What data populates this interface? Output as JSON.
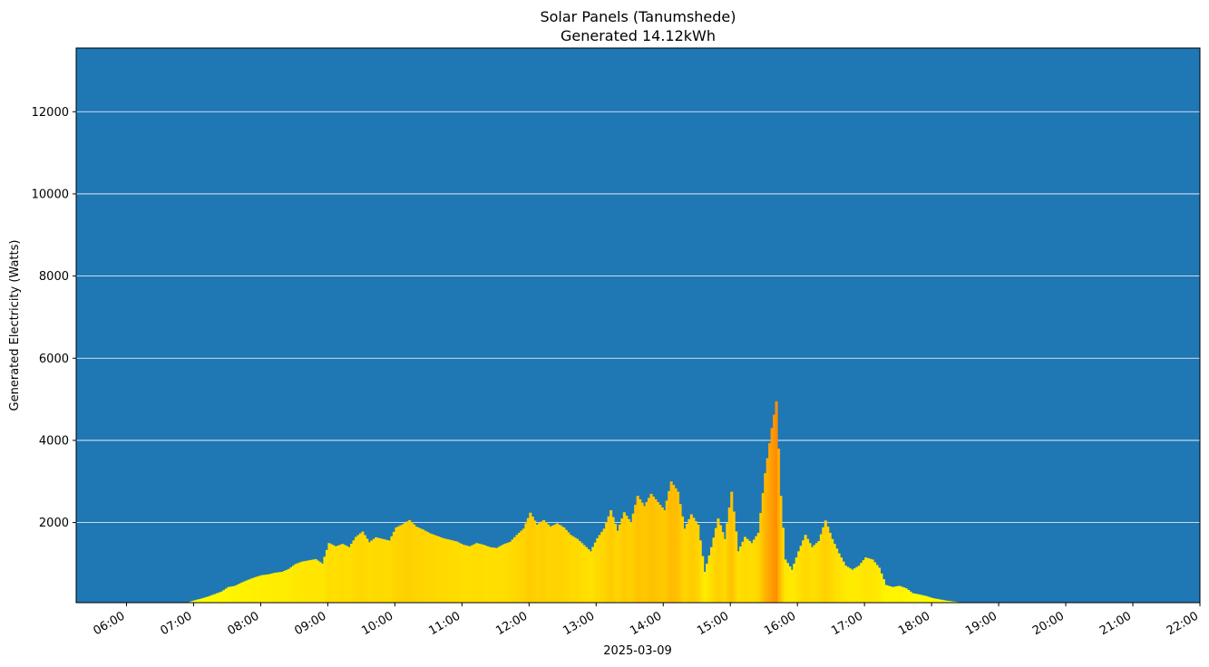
{
  "chart_data": {
    "type": "bar",
    "title": "Solar Panels (Tanumshede)",
    "subtitle": "Generated 14.12kWh",
    "xlabel": "2025-03-09",
    "ylabel": "Generated Electricity (Watts)",
    "x_range": [
      "05:15",
      "22:00"
    ],
    "ylim": [
      50,
      13550
    ],
    "grid": {
      "y": true,
      "color": "#ffffff"
    },
    "background": "#1f77b4",
    "color_scale": {
      "low": "#ffff00",
      "high": "#ff8c00",
      "min": 0,
      "max": 5000
    },
    "x_ticks": [
      "06:00",
      "07:00",
      "08:00",
      "09:00",
      "10:00",
      "11:00",
      "12:00",
      "13:00",
      "14:00",
      "15:00",
      "16:00",
      "17:00",
      "18:00",
      "19:00",
      "20:00",
      "21:00",
      "22:00"
    ],
    "y_ticks": [
      2000,
      4000,
      6000,
      8000,
      10000,
      12000
    ],
    "interval_minutes": 2,
    "series": [
      {
        "points": [
          [
            "06:54",
            60
          ],
          [
            "07:00",
            110
          ],
          [
            "07:06",
            150
          ],
          [
            "07:12",
            200
          ],
          [
            "07:18",
            260
          ],
          [
            "07:24",
            320
          ],
          [
            "07:30",
            430
          ],
          [
            "07:36",
            460
          ],
          [
            "07:42",
            540
          ],
          [
            "07:48",
            610
          ],
          [
            "07:54",
            670
          ],
          [
            "08:00",
            720
          ],
          [
            "08:06",
            740
          ],
          [
            "08:12",
            780
          ],
          [
            "08:18",
            800
          ],
          [
            "08:24",
            870
          ],
          [
            "08:30",
            990
          ],
          [
            "08:36",
            1050
          ],
          [
            "08:42",
            1080
          ],
          [
            "08:48",
            1110
          ],
          [
            "08:54",
            1000
          ],
          [
            "09:00",
            1500
          ],
          [
            "09:06",
            1420
          ],
          [
            "09:12",
            1480
          ],
          [
            "09:18",
            1400
          ],
          [
            "09:24",
            1650
          ],
          [
            "09:30",
            1780
          ],
          [
            "09:36",
            1520
          ],
          [
            "09:42",
            1640
          ],
          [
            "09:48",
            1600
          ],
          [
            "09:54",
            1560
          ],
          [
            "10:00",
            1880
          ],
          [
            "10:06",
            1960
          ],
          [
            "10:12",
            2060
          ],
          [
            "10:18",
            1900
          ],
          [
            "10:24",
            1830
          ],
          [
            "10:30",
            1740
          ],
          [
            "10:36",
            1680
          ],
          [
            "10:42",
            1620
          ],
          [
            "10:48",
            1580
          ],
          [
            "10:54",
            1540
          ],
          [
            "11:00",
            1460
          ],
          [
            "11:06",
            1420
          ],
          [
            "11:12",
            1500
          ],
          [
            "11:18",
            1460
          ],
          [
            "11:24",
            1400
          ],
          [
            "11:30",
            1380
          ],
          [
            "11:36",
            1470
          ],
          [
            "11:42",
            1530
          ],
          [
            "11:48",
            1700
          ],
          [
            "11:54",
            1850
          ],
          [
            "12:00",
            2240
          ],
          [
            "12:06",
            1950
          ],
          [
            "12:12",
            2060
          ],
          [
            "12:18",
            1900
          ],
          [
            "12:24",
            1980
          ],
          [
            "12:30",
            1880
          ],
          [
            "12:36",
            1700
          ],
          [
            "12:42",
            1600
          ],
          [
            "12:48",
            1450
          ],
          [
            "12:54",
            1300
          ],
          [
            "13:00",
            1620
          ],
          [
            "13:06",
            1850
          ],
          [
            "13:12",
            2300
          ],
          [
            "13:18",
            1800
          ],
          [
            "13:24",
            2250
          ],
          [
            "13:30",
            2000
          ],
          [
            "13:36",
            2650
          ],
          [
            "13:42",
            2400
          ],
          [
            "13:48",
            2700
          ],
          [
            "13:54",
            2500
          ],
          [
            "14:00",
            2300
          ],
          [
            "14:06",
            3000
          ],
          [
            "14:12",
            2750
          ],
          [
            "14:18",
            1850
          ],
          [
            "14:24",
            2200
          ],
          [
            "14:30",
            1950
          ],
          [
            "14:36",
            800
          ],
          [
            "14:42",
            1400
          ],
          [
            "14:48",
            2100
          ],
          [
            "14:54",
            1600
          ],
          [
            "15:00",
            2750
          ],
          [
            "15:06",
            1300
          ],
          [
            "15:12",
            1650
          ],
          [
            "15:18",
            1500
          ],
          [
            "15:24",
            1750
          ],
          [
            "15:30",
            3200
          ],
          [
            "15:36",
            4300
          ],
          [
            "15:40",
            4950
          ],
          [
            "15:44",
            2650
          ],
          [
            "15:48",
            1100
          ],
          [
            "15:54",
            850
          ],
          [
            "16:00",
            1300
          ],
          [
            "16:06",
            1700
          ],
          [
            "16:12",
            1400
          ],
          [
            "16:18",
            1550
          ],
          [
            "16:24",
            2050
          ],
          [
            "16:30",
            1600
          ],
          [
            "16:36",
            1250
          ],
          [
            "16:42",
            950
          ],
          [
            "16:48",
            850
          ],
          [
            "16:54",
            950
          ],
          [
            "17:00",
            1150
          ],
          [
            "17:06",
            1100
          ],
          [
            "17:12",
            900
          ],
          [
            "17:18",
            480
          ],
          [
            "17:24",
            430
          ],
          [
            "17:30",
            460
          ],
          [
            "17:36",
            400
          ],
          [
            "17:42",
            280
          ],
          [
            "17:48",
            250
          ],
          [
            "17:54",
            210
          ],
          [
            "18:00",
            160
          ],
          [
            "18:06",
            130
          ],
          [
            "18:12",
            100
          ],
          [
            "18:18",
            80
          ],
          [
            "18:24",
            60
          ],
          [
            "18:30",
            55
          ]
        ]
      }
    ]
  }
}
